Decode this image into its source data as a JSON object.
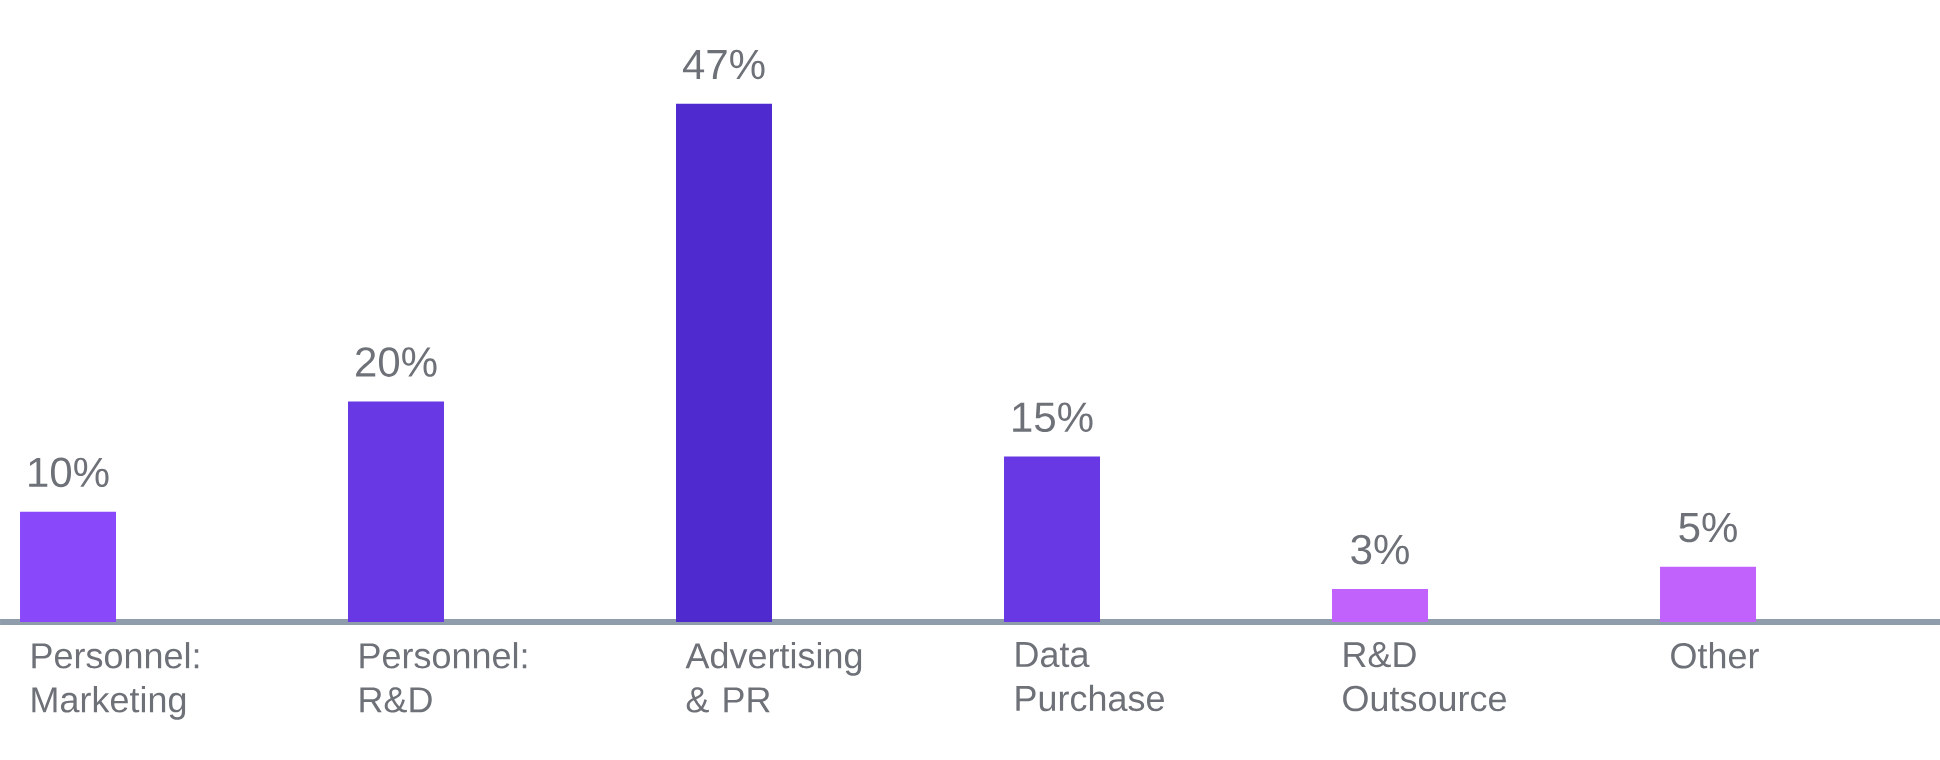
{
  "chart_data": {
    "type": "bar",
    "categories": [
      "Personnel: Marketing",
      "Personnel: R&D",
      "Advertising & PR",
      "Data Purchase",
      "R&D Outsource",
      "Other"
    ],
    "values": [
      10,
      20,
      47,
      15,
      3,
      5
    ],
    "value_labels": [
      "10%",
      "20%",
      "47%",
      "15%",
      "3%",
      "5%"
    ],
    "colors": [
      "#8a48fb",
      "#6838e4",
      "#4f2ace",
      "#6838e4",
      "#c062fb",
      "#c062fb"
    ]
  }
}
